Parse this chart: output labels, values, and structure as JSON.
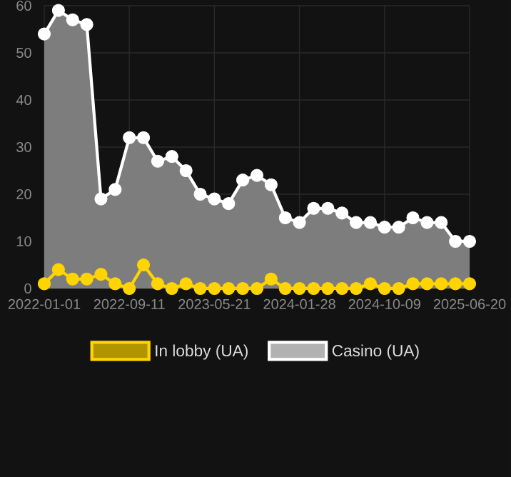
{
  "chart_data": {
    "type": "area",
    "categories": [
      "2022-01-01",
      null,
      null,
      null,
      null,
      null,
      "2022-09-11",
      null,
      null,
      null,
      null,
      null,
      "2023-05-21",
      null,
      null,
      null,
      null,
      null,
      "2024-01-28",
      null,
      null,
      null,
      null,
      null,
      "2024-10-09",
      null,
      null,
      null,
      null,
      null,
      "2025-06-20"
    ],
    "series": [
      {
        "name": "In lobby (UA)",
        "color": "#ffd400",
        "values": [
          1,
          4,
          2,
          2,
          3,
          1,
          0,
          5,
          1,
          0,
          1,
          0,
          0,
          0,
          0,
          0,
          2,
          0,
          0,
          0,
          0,
          0,
          0,
          1,
          0,
          0,
          1,
          1,
          1,
          1,
          1
        ]
      },
      {
        "name": "Casino (UA)",
        "color": "#ffffff",
        "values": [
          54,
          59,
          57,
          56,
          19,
          21,
          32,
          32,
          27,
          28,
          25,
          20,
          19,
          18,
          23,
          24,
          22,
          15,
          14,
          17,
          17,
          16,
          14,
          14,
          13,
          13,
          15,
          14,
          14,
          10,
          10
        ]
      }
    ],
    "ylim": [
      0,
      60
    ],
    "yticks": [
      0,
      10,
      20,
      30,
      40,
      50,
      60
    ],
    "grid": true,
    "legend": "bottom",
    "marker": "circle",
    "line_style": "solid"
  }
}
